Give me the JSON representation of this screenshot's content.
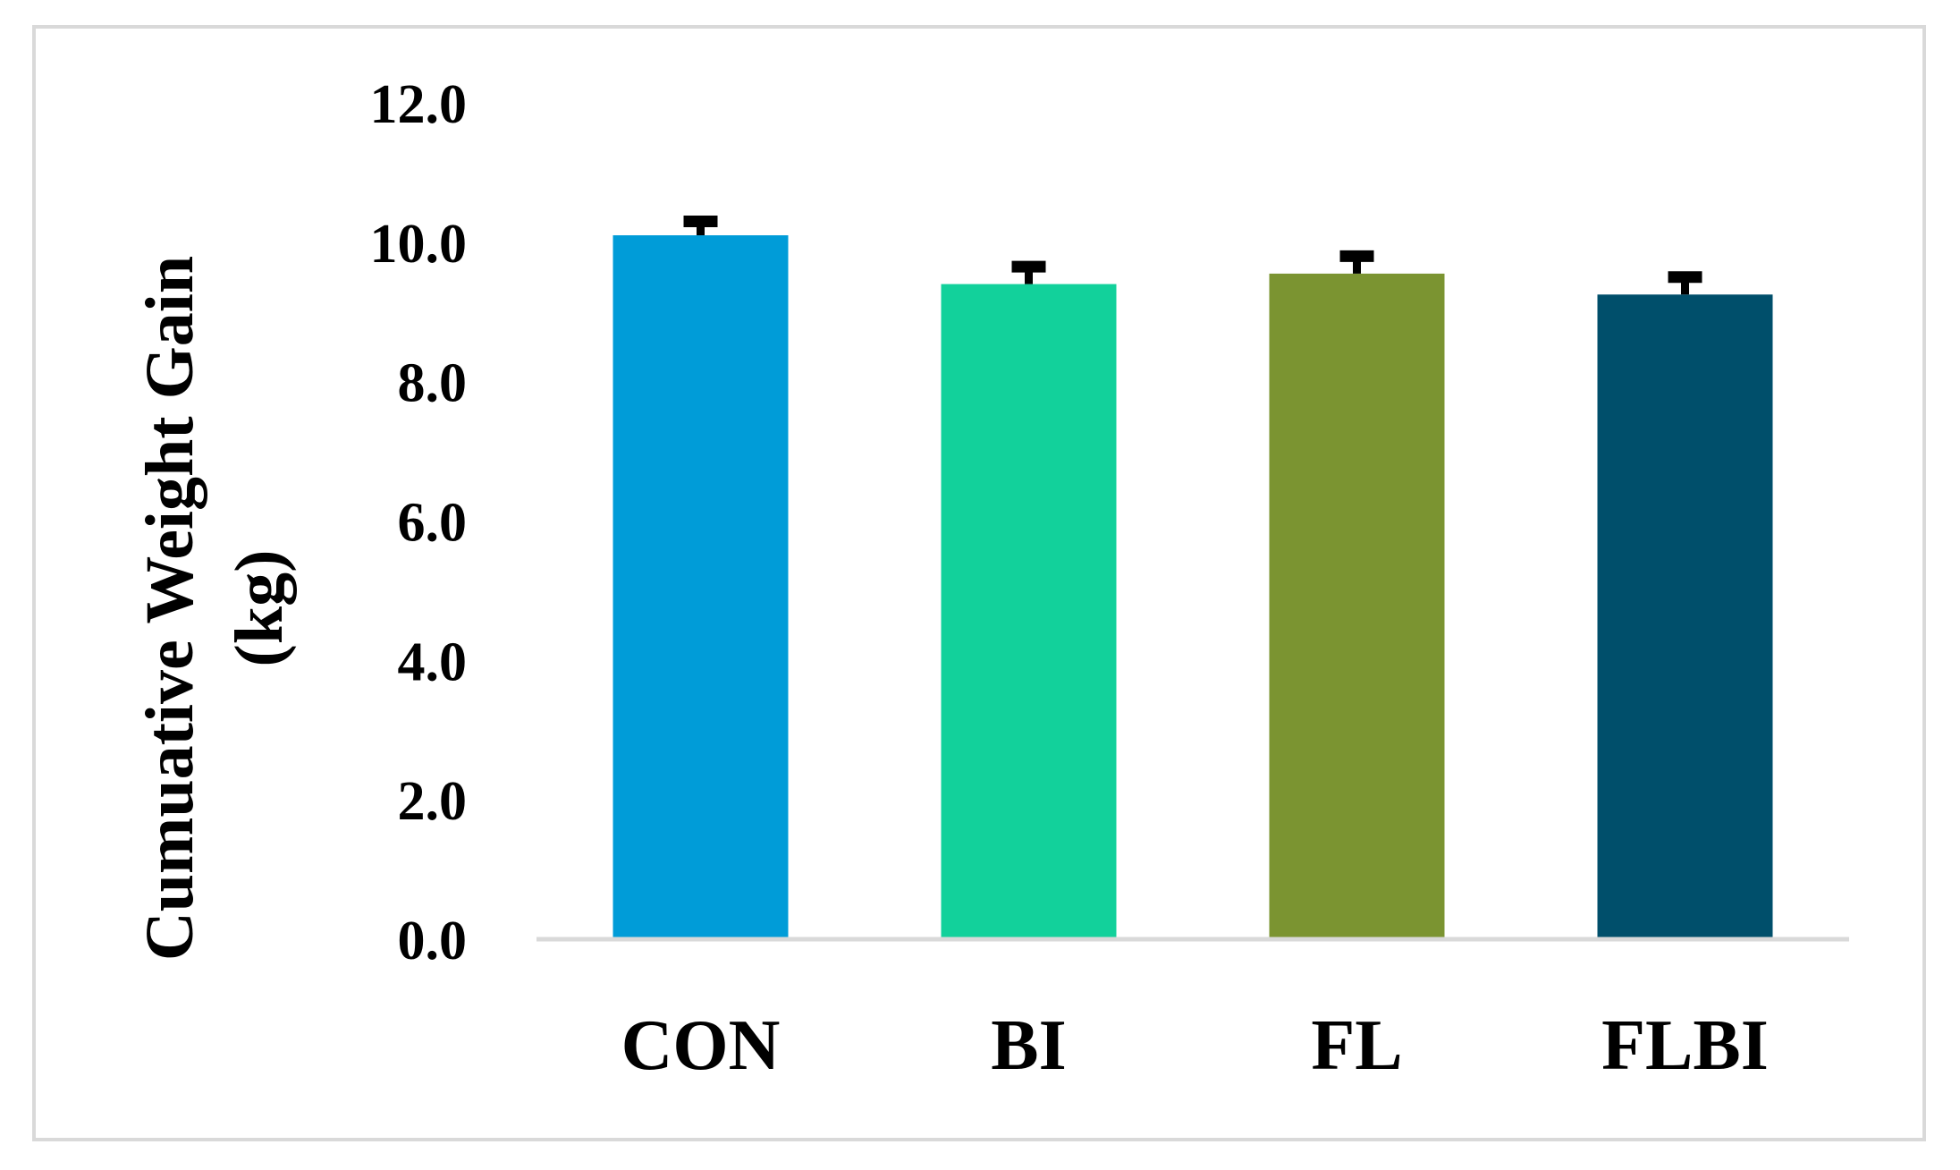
{
  "chart_data": {
    "type": "bar",
    "title": "",
    "xlabel": "",
    "ylabel": [
      "Cumuative Weight Gain",
      "(kg)"
    ],
    "categories": [
      "CON",
      "BI",
      "FL",
      "FLBI"
    ],
    "series": [
      {
        "values": [
          10.1,
          9.4,
          9.55,
          9.25
        ],
        "errors": [
          0.2,
          0.25,
          0.25,
          0.25
        ],
        "colors": [
          "#009cd8",
          "#12d19b",
          "#7b9431",
          "#004f6b"
        ]
      }
    ],
    "yticks": [
      "0.0",
      "2.0",
      "4.0",
      "6.0",
      "8.0",
      "10.0",
      "12.0"
    ],
    "ylim": [
      0,
      12
    ],
    "grid": false,
    "legend": "none"
  },
  "colors": {
    "axis_line": "#d9d9d9",
    "error_bar": "#000000",
    "frame_border": "#d9d9d9"
  }
}
